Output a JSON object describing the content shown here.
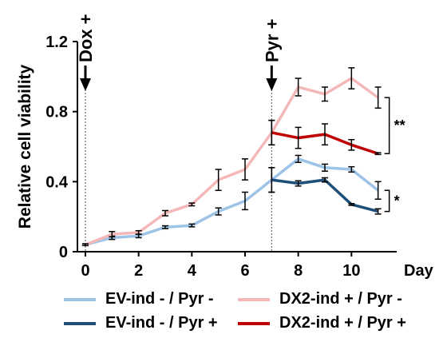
{
  "chart_data": {
    "type": "line",
    "ylabel": "Relative cell viability",
    "xunit": "Day",
    "x": [
      0,
      1,
      2,
      3,
      4,
      5,
      6,
      7,
      8,
      9,
      10,
      11
    ],
    "xticks": [
      "0",
      "2",
      "4",
      "6",
      "8",
      "10"
    ],
    "xtick_values": [
      0,
      2,
      4,
      6,
      8,
      10
    ],
    "yticks": [
      "0",
      "0.4",
      "0.8",
      "1.2"
    ],
    "ytick_values": [
      0,
      0.4,
      0.8,
      1.2
    ],
    "xlim": [
      -0.3,
      11.7
    ],
    "ylim": [
      0,
      1.2
    ],
    "grid": false,
    "legend_position": "bottom",
    "series": [
      {
        "name": "EV-ind - / Pyr -",
        "color": "#9dc3e6",
        "x": [
          0,
          1,
          2,
          3,
          4,
          5,
          6,
          7,
          8,
          9,
          10,
          11
        ],
        "values": [
          0.04,
          0.08,
          0.09,
          0.14,
          0.15,
          0.23,
          0.29,
          0.41,
          0.53,
          0.48,
          0.47,
          0.35
        ],
        "errors": [
          0.005,
          0.01,
          0.01,
          0.008,
          0.008,
          0.02,
          0.05,
          0.07,
          0.02,
          0.02,
          0.015,
          0.05
        ]
      },
      {
        "name": "DX2-ind + / Pyr -",
        "color": "#f4b8b8",
        "x": [
          0,
          1,
          2,
          3,
          4,
          5,
          6,
          7,
          8,
          9,
          10,
          11
        ],
        "values": [
          0.04,
          0.1,
          0.11,
          0.22,
          0.27,
          0.41,
          0.47,
          0.68,
          0.94,
          0.9,
          0.99,
          0.88
        ],
        "errors": [
          0.005,
          0.015,
          0.01,
          0.015,
          0.008,
          0.06,
          0.06,
          0.07,
          0.05,
          0.04,
          0.06,
          0.06
        ]
      },
      {
        "name": "EV-ind - / Pyr +",
        "color": "#1f4e79",
        "x": [
          7,
          8,
          9,
          10,
          11
        ],
        "values": [
          0.41,
          0.39,
          0.41,
          0.27,
          0.23
        ],
        "errors": [
          0.07,
          0.015,
          0.012,
          0.005,
          0.015
        ]
      },
      {
        "name": "DX2-ind + / Pyr +",
        "color": "#c00000",
        "x": [
          7,
          8,
          9,
          10,
          11
        ],
        "values": [
          0.68,
          0.65,
          0.67,
          0.61,
          0.56
        ],
        "errors": [
          0.07,
          0.06,
          0.06,
          0.03,
          0.005
        ]
      }
    ],
    "annotations": [
      {
        "text": "Dox +",
        "x": 0
      },
      {
        "text": "Pyr +",
        "x": 7
      }
    ],
    "significance": [
      {
        "text": "**",
        "from": 0.88,
        "to": 0.56
      },
      {
        "text": "*",
        "from": 0.35,
        "to": 0.23
      }
    ]
  }
}
